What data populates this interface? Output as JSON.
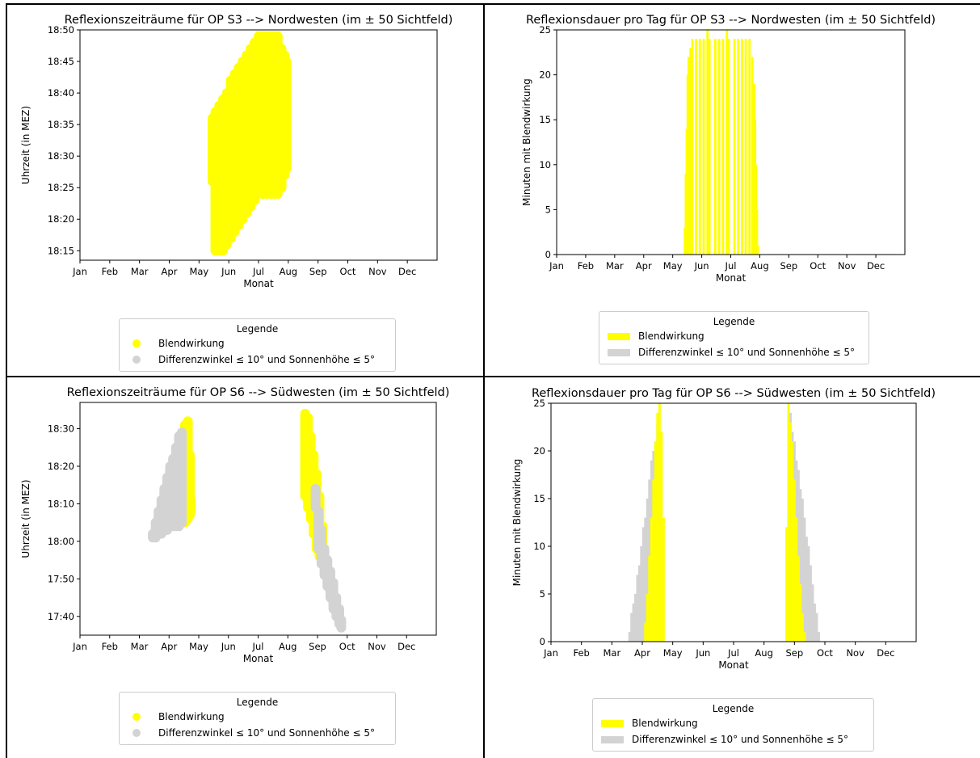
{
  "colors": {
    "blend": "#ffff00",
    "diff": "#d3d3d3",
    "axis": "#000000"
  },
  "legend": {
    "title": "Legende",
    "blend": "Blendwirkung",
    "diff": "Differenzwinkel ≤ 10° und Sonnenhöhe ≤ 5°"
  },
  "chart_data": [
    {
      "id": "s3_time",
      "type": "scatter",
      "title": "Reflexionszeiträume für OP S3 --> Nordwesten (im ± 50 Sichtfeld)",
      "xlabel": "Monat",
      "ylabel": "Uhrzeit (in MEZ)",
      "x_ticks": [
        "Jan",
        "Feb",
        "Mar",
        "Apr",
        "May",
        "Jun",
        "Jul",
        "Aug",
        "Sep",
        "Oct",
        "Nov",
        "Dec"
      ],
      "y_ticks": [
        "18:15",
        "18:20",
        "18:25",
        "18:30",
        "18:35",
        "18:40",
        "18:45",
        "18:50"
      ],
      "xlim": [
        0,
        12
      ],
      "ylim": [
        "18:13.5",
        "18:50"
      ],
      "legend_location": "below",
      "series": [
        {
          "name": "Blendwirkung",
          "color": "#ffff00",
          "day_ranges": [
            {
              "day": 135,
              "start": "18:26",
              "end": "18:36"
            },
            {
              "day": 138,
              "start": "18:15",
              "end": "18:37"
            },
            {
              "day": 142,
              "start": "18:15",
              "end": "18:38"
            },
            {
              "day": 146,
              "start": "18:15",
              "end": "18:39"
            },
            {
              "day": 150,
              "start": "18:16",
              "end": "18:40"
            },
            {
              "day": 154,
              "start": "18:17",
              "end": "18:42"
            },
            {
              "day": 158,
              "start": "18:18",
              "end": "18:43"
            },
            {
              "day": 162,
              "start": "18:19",
              "end": "18:44"
            },
            {
              "day": 166,
              "start": "18:20",
              "end": "18:45"
            },
            {
              "day": 170,
              "start": "18:21",
              "end": "18:46"
            },
            {
              "day": 174,
              "start": "18:22",
              "end": "18:47"
            },
            {
              "day": 178,
              "start": "18:23",
              "end": "18:48"
            },
            {
              "day": 182,
              "start": "18:24",
              "end": "18:49"
            },
            {
              "day": 186,
              "start": "18:24",
              "end": "18:49"
            },
            {
              "day": 190,
              "start": "18:24",
              "end": "18:49"
            },
            {
              "day": 194,
              "start": "18:24",
              "end": "18:49"
            },
            {
              "day": 198,
              "start": "18:24",
              "end": "18:49"
            },
            {
              "day": 202,
              "start": "18:24",
              "end": "18:49"
            },
            {
              "day": 206,
              "start": "18:25",
              "end": "18:47"
            },
            {
              "day": 209,
              "start": "18:27",
              "end": "18:46"
            },
            {
              "day": 211,
              "start": "18:28",
              "end": "18:45"
            }
          ]
        },
        {
          "name": "Differenzwinkel ≤ 10° und Sonnenhöhe ≤ 5°",
          "color": "#d3d3d3",
          "day_ranges": []
        }
      ]
    },
    {
      "id": "s3_duration",
      "type": "bar",
      "title": "Reflexionsdauer pro Tag für OP S3 --> Nordwesten (im ± 50 Sichtfeld)",
      "xlabel": "Monat",
      "ylabel": "Minuten mit Blendwirkung",
      "x_ticks": [
        "Jan",
        "Feb",
        "Mar",
        "Apr",
        "May",
        "Jun",
        "Jul",
        "Aug",
        "Sep",
        "Oct",
        "Nov",
        "Dec"
      ],
      "y_ticks": [
        0,
        5,
        10,
        15,
        20,
        25
      ],
      "xlim": [
        0,
        12
      ],
      "ylim": [
        0,
        25
      ],
      "legend_location": "below",
      "series": [
        {
          "name": "Blendwirkung",
          "color": "#ffff00",
          "day_values": [
            [
              134,
              3
            ],
            [
              135,
              9
            ],
            [
              136,
              14
            ],
            [
              137,
              20
            ],
            [
              138,
              22
            ],
            [
              140,
              23
            ],
            [
              142,
              24
            ],
            [
              146,
              24
            ],
            [
              150,
              24
            ],
            [
              154,
              24
            ],
            [
              158,
              25
            ],
            [
              160,
              24
            ],
            [
              166,
              24
            ],
            [
              170,
              24
            ],
            [
              174,
              24
            ],
            [
              178,
              25
            ],
            [
              180,
              24
            ],
            [
              186,
              24
            ],
            [
              190,
              24
            ],
            [
              194,
              24
            ],
            [
              198,
              24
            ],
            [
              202,
              24
            ],
            [
              205,
              22
            ],
            [
              207,
              19
            ],
            [
              208,
              15
            ],
            [
              209,
              10
            ],
            [
              210,
              5
            ],
            [
              211,
              1
            ]
          ]
        },
        {
          "name": "Differenzwinkel ≤ 10° und Sonnenhöhe ≤ 5°",
          "color": "#d3d3d3",
          "day_values": []
        }
      ]
    },
    {
      "id": "s6_time",
      "type": "scatter",
      "title": "Reflexionszeiträume für OP S6 --> Südwesten (im ± 50 Sichtfeld)",
      "xlabel": "Monat",
      "ylabel": "Uhrzeit (in MEZ)",
      "x_ticks": [
        "Jan",
        "Feb",
        "Mar",
        "Apr",
        "May",
        "Jun",
        "Jul",
        "Aug",
        "Sep",
        "Oct",
        "Nov",
        "Dec"
      ],
      "y_ticks": [
        "17:40",
        "17:50",
        "18:00",
        "18:10",
        "18:20",
        "18:30"
      ],
      "xlim": [
        0,
        12
      ],
      "ylim": [
        "17:35",
        "18:37"
      ],
      "legend_location": "below",
      "series": [
        {
          "name": "Blendwirkung",
          "color": "#ffff00",
          "day_ranges": [
            {
              "day": 92,
              "start": "18:04",
              "end": "18:09"
            },
            {
              "day": 95,
              "start": "18:04",
              "end": "18:14"
            },
            {
              "day": 98,
              "start": "18:04",
              "end": "18:18"
            },
            {
              "day": 101,
              "start": "18:04",
              "end": "18:23"
            },
            {
              "day": 104,
              "start": "18:05",
              "end": "18:27"
            },
            {
              "day": 107,
              "start": "18:05",
              "end": "18:31"
            },
            {
              "day": 110,
              "start": "18:06",
              "end": "18:32"
            },
            {
              "day": 112,
              "start": "18:07",
              "end": "18:23"
            },
            {
              "day": 113,
              "start": "18:08",
              "end": "18:11"
            },
            {
              "day": 231,
              "start": "18:12",
              "end": "18:34"
            },
            {
              "day": 234,
              "start": "18:09",
              "end": "18:33"
            },
            {
              "day": 237,
              "start": "18:06",
              "end": "18:28"
            },
            {
              "day": 240,
              "start": "18:02",
              "end": "18:23"
            },
            {
              "day": 243,
              "start": "17:58",
              "end": "18:18"
            },
            {
              "day": 246,
              "start": "17:56",
              "end": "18:12"
            },
            {
              "day": 249,
              "start": "17:54",
              "end": "18:04"
            },
            {
              "day": 251,
              "start": "17:53",
              "end": "17:57"
            }
          ]
        },
        {
          "name": "Differenzwinkel ≤ 10° und Sonnenhöhe ≤ 5°",
          "color": "#d3d3d3",
          "day_ranges": [
            {
              "day": 74,
              "start": "18:01",
              "end": "18:02"
            },
            {
              "day": 77,
              "start": "18:01",
              "end": "18:05"
            },
            {
              "day": 80,
              "start": "18:02",
              "end": "18:08"
            },
            {
              "day": 83,
              "start": "18:02",
              "end": "18:11"
            },
            {
              "day": 86,
              "start": "18:03",
              "end": "18:14"
            },
            {
              "day": 89,
              "start": "18:03",
              "end": "18:17"
            },
            {
              "day": 92,
              "start": "18:04",
              "end": "18:20"
            },
            {
              "day": 95,
              "start": "18:04",
              "end": "18:22"
            },
            {
              "day": 98,
              "start": "18:04",
              "end": "18:25"
            },
            {
              "day": 101,
              "start": "18:04",
              "end": "18:28"
            },
            {
              "day": 104,
              "start": "18:05",
              "end": "18:29"
            },
            {
              "day": 242,
              "start": "18:09",
              "end": "18:14"
            },
            {
              "day": 245,
              "start": "17:58",
              "end": "18:08"
            },
            {
              "day": 248,
              "start": "17:54",
              "end": "18:03"
            },
            {
              "day": 251,
              "start": "17:51",
              "end": "17:58"
            },
            {
              "day": 254,
              "start": "17:48",
              "end": "17:55"
            },
            {
              "day": 257,
              "start": "17:45",
              "end": "17:52"
            },
            {
              "day": 260,
              "start": "17:42",
              "end": "17:49"
            },
            {
              "day": 263,
              "start": "17:40",
              "end": "17:45"
            },
            {
              "day": 266,
              "start": "17:38",
              "end": "17:42"
            },
            {
              "day": 268,
              "start": "17:37",
              "end": "17:39"
            }
          ]
        }
      ]
    },
    {
      "id": "s6_duration",
      "type": "bar",
      "title": "Reflexionsdauer pro Tag für OP S6 --> Südwesten (im ± 50 Sichtfeld)",
      "xlabel": "Monat",
      "ylabel": "Minuten mit Blendwirkung",
      "x_ticks": [
        "Jan",
        "Feb",
        "Mar",
        "Apr",
        "May",
        "Jun",
        "Jul",
        "Aug",
        "Sep",
        "Oct",
        "Nov",
        "Dec"
      ],
      "y_ticks": [
        0,
        5,
        10,
        15,
        20,
        25
      ],
      "xlim": [
        0,
        12
      ],
      "ylim": [
        0,
        25
      ],
      "legend_location": "below",
      "series": [
        {
          "name": "Differenzwinkel ≤ 10° und Sonnenhöhe ≤ 5°",
          "color": "#d3d3d3",
          "day_values": [
            [
              78,
              1
            ],
            [
              80,
              3
            ],
            [
              82,
              4
            ],
            [
              84,
              5
            ],
            [
              86,
              7
            ],
            [
              88,
              8
            ],
            [
              90,
              10
            ],
            [
              92,
              12
            ],
            [
              94,
              13
            ],
            [
              96,
              15
            ],
            [
              98,
              17
            ],
            [
              100,
              19
            ],
            [
              102,
              20
            ],
            [
              104,
              21
            ],
            [
              106,
              23
            ],
            [
              238,
              25
            ],
            [
              240,
              24
            ],
            [
              242,
              22
            ],
            [
              244,
              21
            ],
            [
              246,
              19
            ],
            [
              248,
              18
            ],
            [
              250,
              16
            ],
            [
              252,
              15
            ],
            [
              254,
              13
            ],
            [
              256,
              11
            ],
            [
              258,
              10
            ],
            [
              260,
              8
            ],
            [
              262,
              6
            ],
            [
              264,
              4
            ],
            [
              266,
              3
            ],
            [
              268,
              1
            ]
          ]
        },
        {
          "name": "Blendwirkung",
          "color": "#ffff00",
          "day_values": [
            [
              94,
              2
            ],
            [
              96,
              5
            ],
            [
              98,
              9
            ],
            [
              100,
              13
            ],
            [
              102,
              17
            ],
            [
              104,
              21
            ],
            [
              106,
              24
            ],
            [
              108,
              25
            ],
            [
              110,
              22
            ],
            [
              112,
              13
            ],
            [
              236,
              12
            ],
            [
              238,
              25
            ],
            [
              240,
              23
            ],
            [
              242,
              21
            ],
            [
              244,
              17
            ],
            [
              246,
              13
            ],
            [
              248,
              9
            ],
            [
              250,
              6
            ],
            [
              252,
              3
            ],
            [
              254,
              1
            ]
          ]
        }
      ]
    }
  ]
}
